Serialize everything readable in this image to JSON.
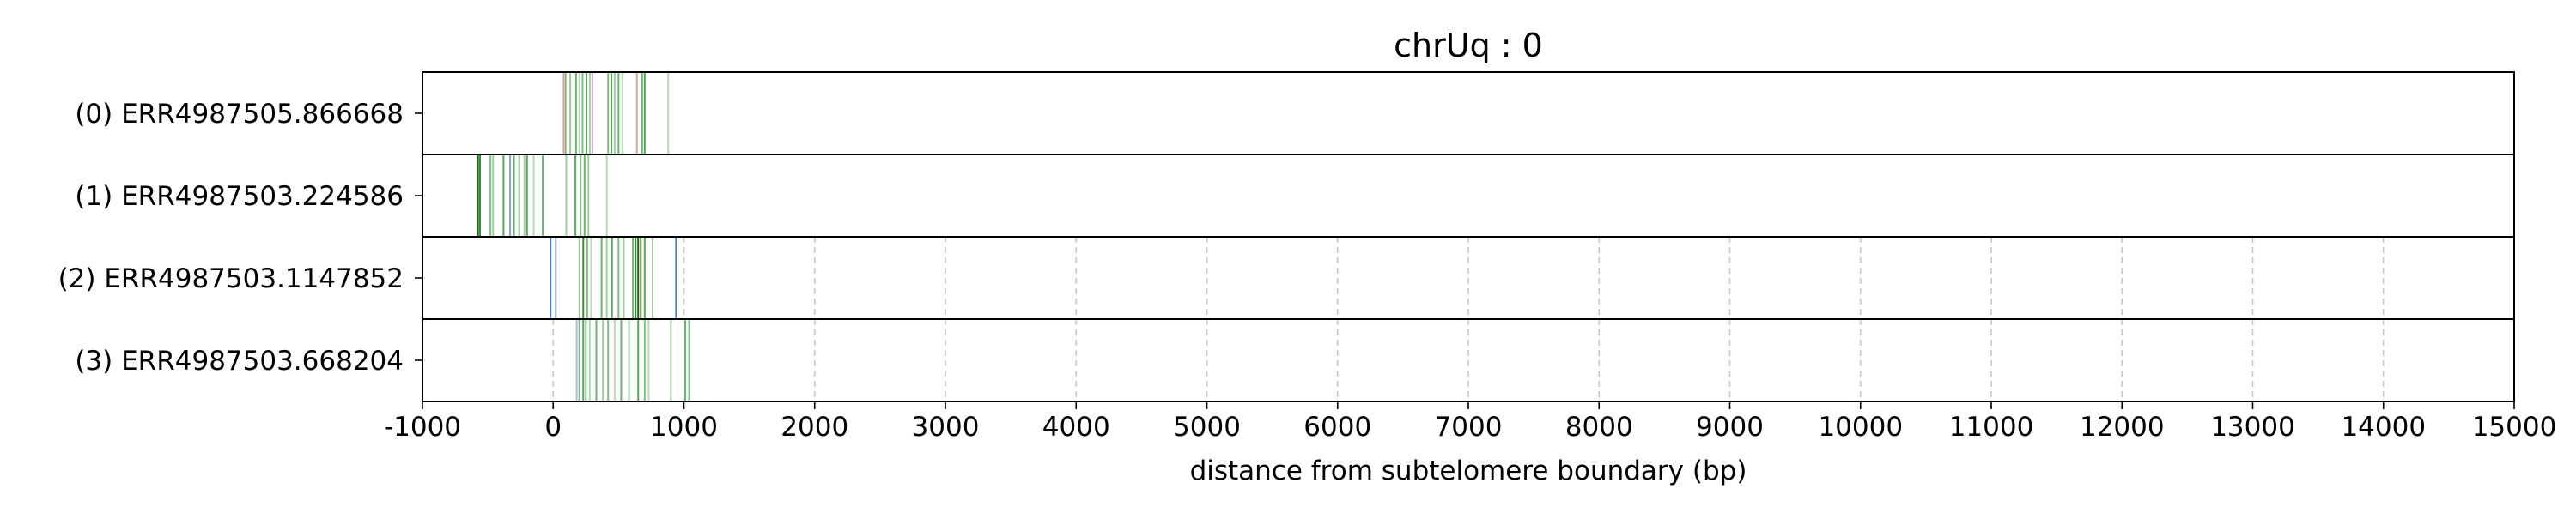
{
  "chart_data": {
    "type": "heatmap",
    "title": "chrUq : 0",
    "xlabel": "distance from subtelomere boundary (bp)",
    "ylabel": "",
    "xlim": [
      -1000,
      15000
    ],
    "x_ticks": [
      -1000,
      0,
      1000,
      2000,
      3000,
      4000,
      5000,
      6000,
      7000,
      8000,
      9000,
      10000,
      11000,
      12000,
      13000,
      14000,
      15000
    ],
    "x_tick_labels": [
      "-1000",
      "0",
      "1000",
      "2000",
      "3000",
      "4000",
      "5000",
      "6000",
      "7000",
      "8000",
      "9000",
      "10000",
      "11000",
      "12000",
      "13000",
      "14000",
      "15000"
    ],
    "vertical_grid": "dashed",
    "rows": [
      {
        "label": "(0) ERR4987505.866668",
        "read_start": -1000,
        "read_end": 15000,
        "marks": [
          {
            "x": 80,
            "color": "#d9a3a3"
          },
          {
            "x": 95,
            "color": "#7fbf7f"
          },
          {
            "x": 130,
            "color": "#9fcf9f"
          },
          {
            "x": 175,
            "color": "#6fb36f"
          },
          {
            "x": 200,
            "color": "#b5d9b5"
          },
          {
            "x": 225,
            "color": "#7fbf7f"
          },
          {
            "x": 255,
            "color": "#5aa65a"
          },
          {
            "x": 280,
            "color": "#9fcf9f"
          },
          {
            "x": 300,
            "color": "#c9a3d9"
          },
          {
            "x": 420,
            "color": "#7fbf7f"
          },
          {
            "x": 445,
            "color": "#5aa65a"
          },
          {
            "x": 470,
            "color": "#9fcf9f"
          },
          {
            "x": 500,
            "color": "#6fb36f"
          },
          {
            "x": 530,
            "color": "#b5d9b5"
          },
          {
            "x": 640,
            "color": "#d9a3a3"
          },
          {
            "x": 680,
            "color": "#6fb36f"
          },
          {
            "x": 700,
            "color": "#5aa65a"
          },
          {
            "x": 880,
            "color": "#b5d9b5"
          }
        ]
      },
      {
        "label": "(1) ERR4987503.224586",
        "read_start": -570,
        "read_end": 15000,
        "marks": [
          {
            "x": -575,
            "color": "#1f6f1f"
          },
          {
            "x": -560,
            "color": "#3c8c3c"
          },
          {
            "x": -480,
            "color": "#7fbf7f"
          },
          {
            "x": -460,
            "color": "#9fcf9f"
          },
          {
            "x": -380,
            "color": "#5aa65a"
          },
          {
            "x": -330,
            "color": "#8aa3c9"
          },
          {
            "x": -300,
            "color": "#6fb36f"
          },
          {
            "x": -260,
            "color": "#7fbf7f"
          },
          {
            "x": -220,
            "color": "#9fcf9f"
          },
          {
            "x": -200,
            "color": "#5aa65a"
          },
          {
            "x": -150,
            "color": "#b5d9b5"
          },
          {
            "x": -80,
            "color": "#6fb36f"
          },
          {
            "x": 100,
            "color": "#9fcf9f"
          },
          {
            "x": 170,
            "color": "#5aa65a"
          },
          {
            "x": 210,
            "color": "#7fbf7f"
          },
          {
            "x": 240,
            "color": "#6fb36f"
          },
          {
            "x": 270,
            "color": "#9fcf9f"
          },
          {
            "x": 410,
            "color": "#b5d9b5"
          }
        ]
      },
      {
        "label": "(2) ERR4987503.1147852",
        "read_start": -20,
        "read_end": 960,
        "marks": [
          {
            "x": -20,
            "color": "#4a78c0"
          },
          {
            "x": 20,
            "color": "#8aa3c9"
          },
          {
            "x": 200,
            "color": "#9fcf9f"
          },
          {
            "x": 230,
            "color": "#3c8c3c"
          },
          {
            "x": 260,
            "color": "#7fbf7f"
          },
          {
            "x": 290,
            "color": "#b5d9b5"
          },
          {
            "x": 370,
            "color": "#6fb36f"
          },
          {
            "x": 410,
            "color": "#9fcf9f"
          },
          {
            "x": 450,
            "color": "#5aa65a"
          },
          {
            "x": 500,
            "color": "#7fbf7f"
          },
          {
            "x": 540,
            "color": "#9fcf9f"
          },
          {
            "x": 610,
            "color": "#6fb36f"
          },
          {
            "x": 630,
            "color": "#2e7d2e"
          },
          {
            "x": 650,
            "color": "#1f5f1f"
          },
          {
            "x": 670,
            "color": "#6a7a2a"
          },
          {
            "x": 700,
            "color": "#5aa65a"
          },
          {
            "x": 760,
            "color": "#9fcf9f"
          },
          {
            "x": 940,
            "color": "#4a78c0"
          }
        ]
      },
      {
        "label": "(3) ERR4987503.668204",
        "read_start": 180,
        "read_end": 1050,
        "marks": [
          {
            "x": 180,
            "color": "#9fcf9f"
          },
          {
            "x": 200,
            "color": "#8aa3c9"
          },
          {
            "x": 230,
            "color": "#5aa65a"
          },
          {
            "x": 250,
            "color": "#7fbf7f"
          },
          {
            "x": 280,
            "color": "#b5d9b5"
          },
          {
            "x": 330,
            "color": "#6fb36f"
          },
          {
            "x": 380,
            "color": "#9fcf9f"
          },
          {
            "x": 420,
            "color": "#7fbf7f"
          },
          {
            "x": 470,
            "color": "#b5d9b5"
          },
          {
            "x": 520,
            "color": "#6fb36f"
          },
          {
            "x": 580,
            "color": "#9fcf9f"
          },
          {
            "x": 650,
            "color": "#5aa65a"
          },
          {
            "x": 700,
            "color": "#7fbf7f"
          },
          {
            "x": 730,
            "color": "#b5d9b5"
          },
          {
            "x": 900,
            "color": "#9fcf9f"
          },
          {
            "x": 1010,
            "color": "#6fb36f"
          },
          {
            "x": 1040,
            "color": "#7fbf7f"
          }
        ]
      }
    ]
  }
}
